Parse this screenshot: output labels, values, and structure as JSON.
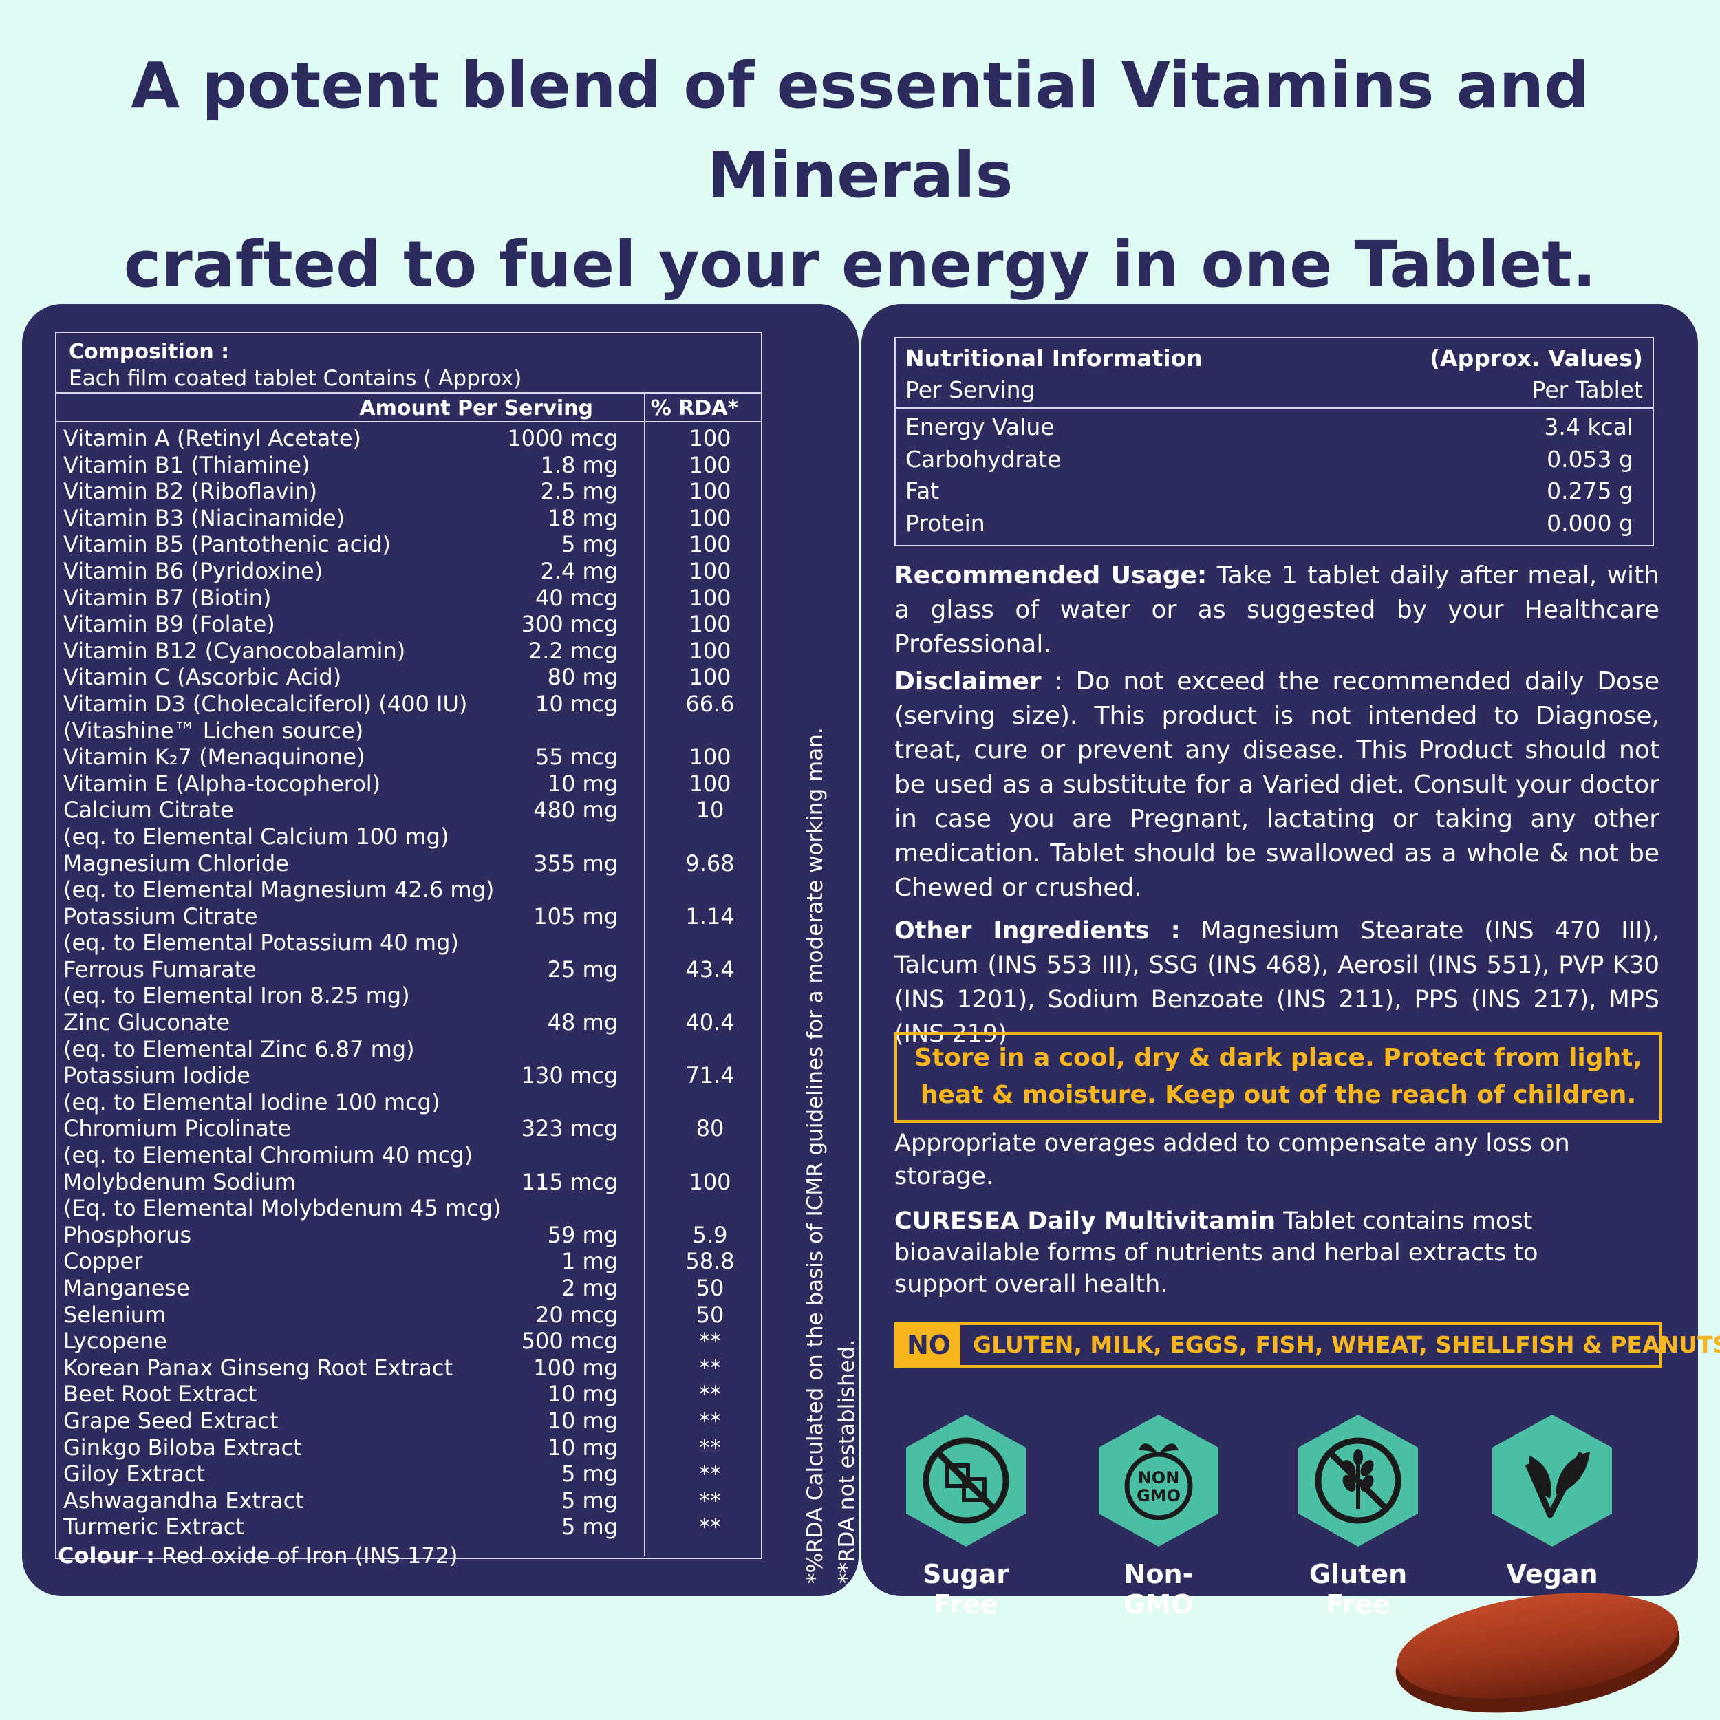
{
  "headline": {
    "line1": "A potent blend of essential Vitamins and Minerals",
    "line2": "crafted to fuel your energy in one Tablet."
  },
  "composition": {
    "title": "Composition :",
    "subtitle": "Each film coated tablet Contains ( Approx)",
    "col_amount": "Amount Per Serving",
    "col_rda": "% RDA*",
    "rows": [
      {
        "name": "Vitamin A (Retinyl Acetate)",
        "amount": "1000 mcg",
        "rda": "100"
      },
      {
        "name": "Vitamin B1 (Thiamine)",
        "amount": "1.8 mg",
        "rda": "100"
      },
      {
        "name": "Vitamin B2 (Riboflavin)",
        "amount": "2.5 mg",
        "rda": "100"
      },
      {
        "name": "Vitamin B3 (Niacinamide)",
        "amount": "18 mg",
        "rda": "100"
      },
      {
        "name": "Vitamin B5 (Pantothenic acid)",
        "amount": "5 mg",
        "rda": "100"
      },
      {
        "name": "Vitamin B6 (Pyridoxine)",
        "amount": "2.4 mg",
        "rda": "100"
      },
      {
        "name": "Vitamin B7 (Biotin)",
        "amount": "40 mcg",
        "rda": "100"
      },
      {
        "name": "Vitamin B9 (Folate)",
        "amount": "300 mcg",
        "rda": "100"
      },
      {
        "name": "Vitamin B12 (Cyanocobalamin)",
        "amount": "2.2 mcg",
        "rda": "100"
      },
      {
        "name": "Vitamin C (Ascorbic Acid)",
        "amount": "80 mg",
        "rda": "100"
      },
      {
        "name": "Vitamin D3 (Cholecalciferol) (400 IU)",
        "amount": "10 mcg",
        "rda": "66.6"
      },
      {
        "name": "(Vitashine™ Lichen source)",
        "amount": "",
        "rda": ""
      },
      {
        "name": "Vitamin K₂7 (Menaquinone)",
        "amount": "55 mcg",
        "rda": "100"
      },
      {
        "name": "Vitamin E (Alpha-tocopherol)",
        "amount": "10 mg",
        "rda": "100"
      },
      {
        "name": "Calcium Citrate",
        "amount": "480 mg",
        "rda": "10"
      },
      {
        "name": "(eq. to Elemental Calcium 100 mg)",
        "amount": "",
        "rda": ""
      },
      {
        "name": "Magnesium Chloride",
        "amount": "355 mg",
        "rda": "9.68"
      },
      {
        "name": "(eq. to Elemental Magnesium 42.6 mg)",
        "amount": "",
        "rda": ""
      },
      {
        "name": "Potassium Citrate",
        "amount": "105 mg",
        "rda": "1.14"
      },
      {
        "name": "(eq. to Elemental Potassium 40 mg)",
        "amount": "",
        "rda": ""
      },
      {
        "name": "Ferrous Fumarate",
        "amount": "25 mg",
        "rda": "43.4"
      },
      {
        "name": "(eq. to Elemental Iron 8.25 mg)",
        "amount": "",
        "rda": ""
      },
      {
        "name": "Zinc Gluconate",
        "amount": "48 mg",
        "rda": "40.4"
      },
      {
        "name": "(eq. to Elemental Zinc 6.87 mg)",
        "amount": "",
        "rda": ""
      },
      {
        "name": "Potassium Iodide",
        "amount": "130 mcg",
        "rda": "71.4"
      },
      {
        "name": "(eq. to Elemental Iodine 100 mcg)",
        "amount": "",
        "rda": ""
      },
      {
        "name": "Chromium Picolinate",
        "amount": "323 mcg",
        "rda": "80"
      },
      {
        "name": "(eq. to Elemental Chromium 40 mcg)",
        "amount": "",
        "rda": ""
      },
      {
        "name": "Molybdenum Sodium",
        "amount": "115 mcg",
        "rda": "100"
      },
      {
        "name": "(Eq. to Elemental Molybdenum 45 mcg)",
        "amount": "",
        "rda": ""
      },
      {
        "name": "Phosphorus",
        "amount": "59 mg",
        "rda": "5.9"
      },
      {
        "name": "Copper",
        "amount": "1 mg",
        "rda": "58.8"
      },
      {
        "name": "Manganese",
        "amount": "2 mg",
        "rda": "50"
      },
      {
        "name": "Selenium",
        "amount": "20 mcg",
        "rda": "50"
      },
      {
        "name": "Lycopene",
        "amount": "500 mcg",
        "rda": "**"
      },
      {
        "name": "Korean Panax Ginseng Root Extract",
        "amount": "100 mg",
        "rda": "**"
      },
      {
        "name": "Beet Root Extract",
        "amount": "10 mg",
        "rda": "**"
      },
      {
        "name": "Grape Seed Extract",
        "amount": "10 mg",
        "rda": "**"
      },
      {
        "name": "Ginkgo Biloba Extract",
        "amount": "10 mg",
        "rda": "**"
      },
      {
        "name": "Giloy Extract",
        "amount": "5 mg",
        "rda": "**"
      },
      {
        "name": "Ashwagandha Extract",
        "amount": "5 mg",
        "rda": "**"
      },
      {
        "name": "Turmeric Extract",
        "amount": "5 mg",
        "rda": "**"
      }
    ],
    "colour_label": "Colour :",
    "colour_value": "Red oxide of Iron (INS 172)",
    "note1": "*%RDA Calculated on the basis of ICMR guidelines for a moderate working man.",
    "note2": "**RDA not established."
  },
  "nutrition": {
    "title": "Nutritional Information",
    "title_right": "(Approx. Values)",
    "per_serving": "Per Serving",
    "per_tablet": "Per Tablet",
    "rows": [
      {
        "name": "Energy Value",
        "value": "3.4 kcal"
      },
      {
        "name": "Carbohydrate",
        "value": "0.053 g"
      },
      {
        "name": "Fat",
        "value": "0.275 g"
      },
      {
        "name": "Protein",
        "value": "0.000 g"
      }
    ]
  },
  "usage": {
    "label": "Recommended Usage:",
    "text": "Take 1 tablet daily after meal, with a glass of water or as suggested by your Healthcare Professional."
  },
  "disclaimer": {
    "label": "Disclaimer",
    "text": ": Do not exceed the recommended daily Dose (serving size). This product is not intended to Diagnose, treat, cure or prevent any disease. This Product should not be used as a substitute for a Varied diet. Consult your doctor in case you are Pregnant, lactating or taking any other medication. Tablet should be swallowed as a whole & not be Chewed or crushed."
  },
  "other": {
    "label": "Other Ingredients :",
    "text": "Magnesium Stearate (INS 470 III), Talcum (INS 553 III), SSG (INS 468), Aerosil (INS 551), PVP K30 (INS 1201), Sodium Benzoate (INS 211), PPS (INS 217), MPS (INS 219)"
  },
  "storage": {
    "line1": "Store in a cool, dry & dark place. Protect from light,",
    "line2": "heat & moisture. Keep out of the reach of children."
  },
  "overages": "Appropriate overages added to compensate any loss on storage.",
  "brand": {
    "name": "CURESEA Daily Multivitamin",
    "text": "Tablet contains most bioavailable forms of nutrients and herbal extracts to support overall health."
  },
  "free_from": {
    "no": "NO",
    "list": "GLUTEN, MILK, EGGS, FISH, WHEAT, SHELLFISH & PEANUTS"
  },
  "badges": [
    {
      "label": "Sugar Free",
      "icon": "sugar-free-icon"
    },
    {
      "label": "Non-GMO",
      "icon": "non-gmo-icon",
      "icon_text_1": "NON",
      "icon_text_2": "GMO"
    },
    {
      "label": "Gluten Free",
      "icon": "gluten-free-icon"
    },
    {
      "label": "Vegan",
      "icon": "vegan-icon"
    }
  ],
  "colors": {
    "background": "#dffbf3",
    "panel": "#2e2b5f",
    "accent": "#f7b51e",
    "badge": "#4bbfa3",
    "tablet": "#a0361c"
  }
}
